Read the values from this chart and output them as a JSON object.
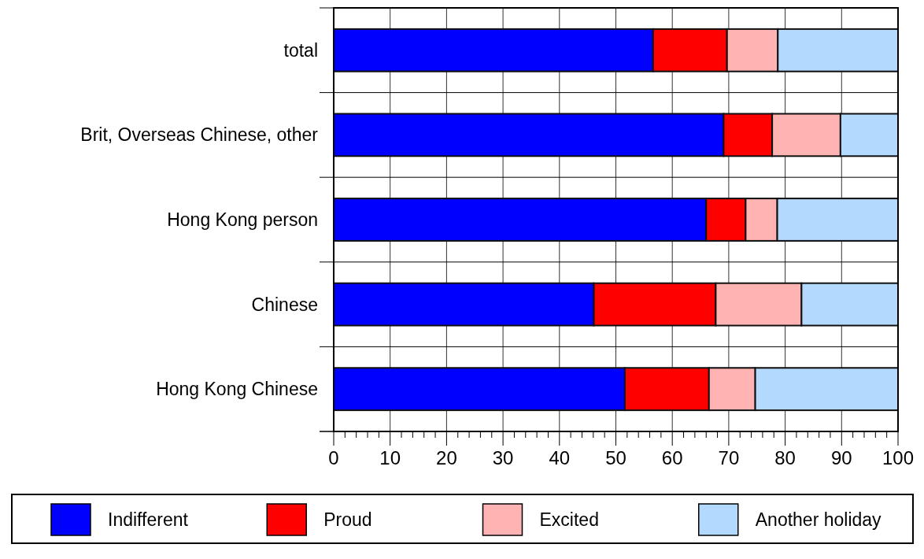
{
  "chart_data": {
    "type": "bar",
    "orientation": "horizontal",
    "stacked": true,
    "categories": [
      "total",
      "Brit, Overseas Chinese, other",
      "Hong Kong person",
      "Chinese",
      "Hong Kong Chinese"
    ],
    "series": [
      {
        "name": "Indifferent",
        "color": "#0000ff",
        "values": [
          56.6,
          69.1,
          66.0,
          46.1,
          51.6
        ]
      },
      {
        "name": "Proud",
        "color": "#ff0000",
        "values": [
          13.1,
          8.6,
          7.0,
          21.6,
          14.9
        ]
      },
      {
        "name": "Excited",
        "color": "#ffb3b3",
        "values": [
          9.0,
          12.1,
          5.6,
          15.2,
          8.2
        ]
      },
      {
        "name": "Another holiday",
        "color": "#b3d9ff",
        "values": [
          21.3,
          10.2,
          21.4,
          17.1,
          25.3
        ]
      }
    ],
    "xlim": [
      0,
      100
    ],
    "xticks": [
      0,
      {
        "value": 2,
        "label": null
      },
      {
        "value": 4,
        "label": null
      },
      {
        "value": 6,
        "label": null
      },
      {
        "value": 8,
        "label": null
      },
      10,
      {
        "value": 12,
        "label": null
      },
      {
        "value": 14,
        "label": null
      },
      {
        "value": 16,
        "label": null
      },
      {
        "value": 18,
        "label": null
      },
      20,
      {
        "value": 22,
        "label": null
      },
      {
        "value": 24,
        "label": null
      },
      {
        "value": 26,
        "label": null
      },
      {
        "value": 28,
        "label": null
      },
      30,
      {
        "value": 32,
        "label": null
      },
      {
        "value": 34,
        "label": null
      },
      {
        "value": 36,
        "label": null
      },
      {
        "value": 38,
        "label": null
      },
      40,
      {
        "value": 42,
        "label": null
      },
      {
        "value": 44,
        "label": null
      },
      {
        "value": 46,
        "label": null
      },
      {
        "value": 48,
        "label": null
      },
      50,
      {
        "value": 52,
        "label": null
      },
      {
        "value": 54,
        "label": null
      },
      {
        "value": 56,
        "label": null
      },
      {
        "value": 58,
        "label": null
      },
      60,
      {
        "value": 62,
        "label": null
      },
      {
        "value": 64,
        "label": null
      },
      {
        "value": 66,
        "label": null
      },
      {
        "value": 68,
        "label": null
      },
      70,
      {
        "value": 72,
        "label": null
      },
      {
        "value": 74,
        "label": null
      },
      {
        "value": 76,
        "label": null
      },
      {
        "value": 78,
        "label": null
      },
      80,
      {
        "value": 82,
        "label": null
      },
      {
        "value": 84,
        "label": null
      },
      {
        "value": 86,
        "label": null
      },
      {
        "value": 88,
        "label": null
      },
      90,
      {
        "value": 92,
        "label": null
      },
      {
        "value": 94,
        "label": null
      },
      {
        "value": 96,
        "label": null
      },
      {
        "value": 98,
        "label": null
      },
      100
    ],
    "grid": "x",
    "legend": "bottom"
  }
}
